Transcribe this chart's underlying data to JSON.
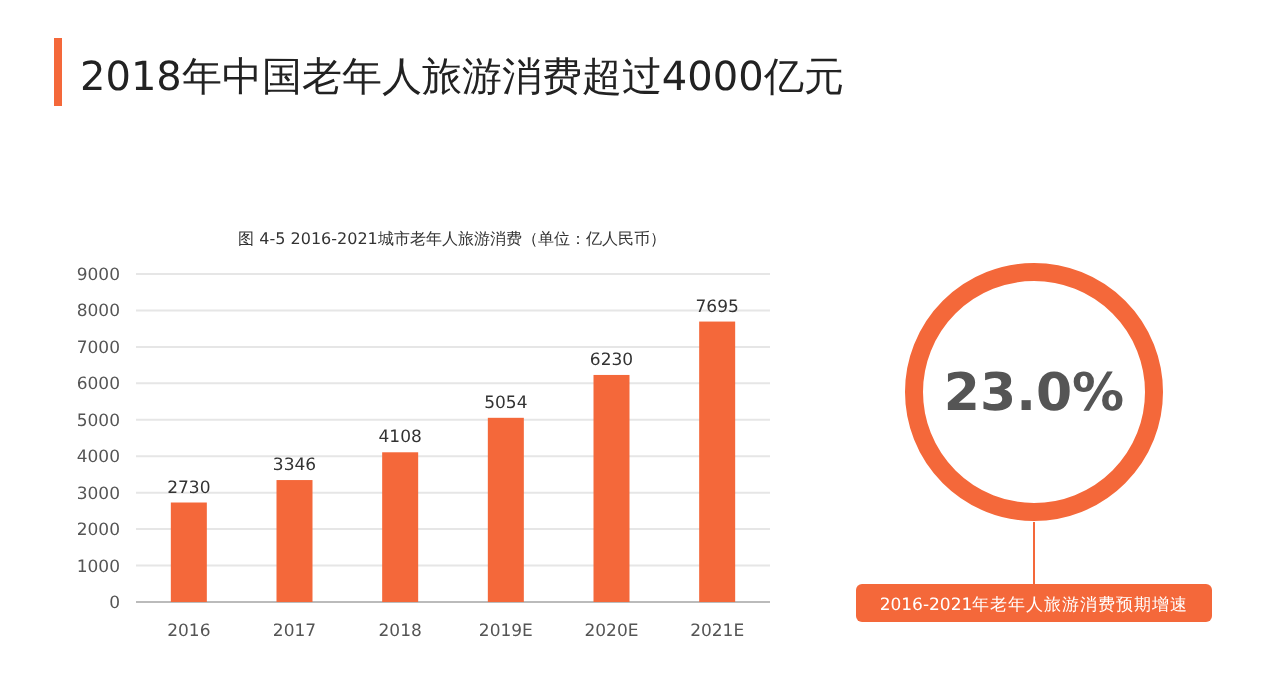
{
  "chart_data": [
    {
      "type": "bar",
      "title": "2018年中国老年人旅游消费超过4000亿元",
      "subtitle": "图 4-5 2016-2021城市老年人旅游消费（单位：亿人民币）",
      "categories": [
        "2016",
        "2017",
        "2018",
        "2019E",
        "2020E",
        "2021E"
      ],
      "values": [
        2730,
        3346,
        4108,
        5054,
        6230,
        7695
      ],
      "color": "#f4683a",
      "ylim": [
        0,
        9000
      ],
      "yticks": [
        0,
        1000,
        2000,
        3000,
        4000,
        5000,
        6000,
        7000,
        8000,
        9000
      ],
      "grid": "y",
      "data_labels": true
    },
    {
      "type": "other",
      "annotations": [
        "23.0%",
        "2016-2021年老年人旅游消费预期增速"
      ]
    }
  ]
}
